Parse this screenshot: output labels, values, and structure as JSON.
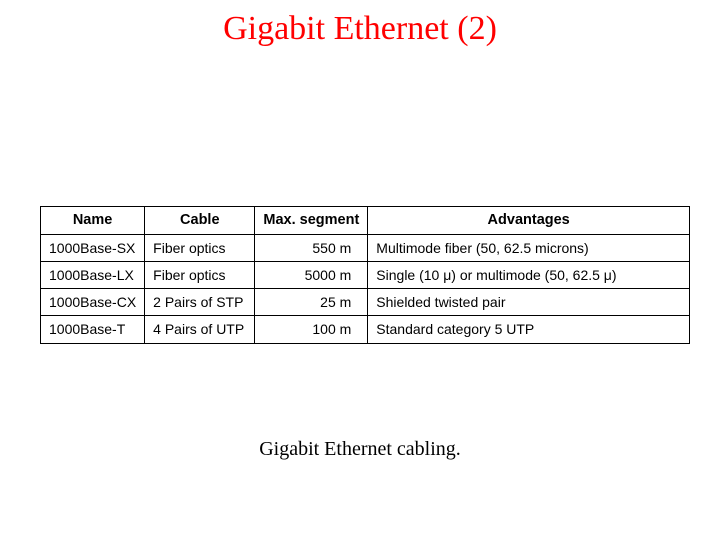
{
  "title": "Gigabit Ethernet (2)",
  "title_color": "#ff0000",
  "title_fontsize": 34,
  "table": {
    "columns": [
      {
        "key": "name",
        "label": "Name",
        "align": "left",
        "width": "16%"
      },
      {
        "key": "cable",
        "label": "Cable",
        "align": "left",
        "width": "17%"
      },
      {
        "key": "segment",
        "label": "Max. segment",
        "align": "right",
        "width": "17%"
      },
      {
        "key": "advantages",
        "label": "Advantages",
        "align": "left",
        "width": "50%"
      }
    ],
    "rows": [
      {
        "name": "1000Base-SX",
        "cable": "Fiber optics",
        "segment": "550 m",
        "advantages": "Multimode fiber (50, 62.5 microns)"
      },
      {
        "name": "1000Base-LX",
        "cable": "Fiber optics",
        "segment": "5000 m",
        "advantages": "Single (10 μ) or multimode (50, 62.5 μ)"
      },
      {
        "name": "1000Base-CX",
        "cable": "2 Pairs of STP",
        "segment": "25 m",
        "advantages": "Shielded twisted pair"
      },
      {
        "name": "1000Base-T",
        "cable": "4 Pairs of UTP",
        "segment": "100 m",
        "advantages": "Standard category 5 UTP"
      }
    ],
    "border_color": "#000000",
    "header_fontsize": 14.5,
    "cell_fontsize": 14,
    "background_color": "#ffffff"
  },
  "caption": "Gigabit Ethernet cabling.",
  "caption_fontsize": 20,
  "caption_color": "#000000"
}
